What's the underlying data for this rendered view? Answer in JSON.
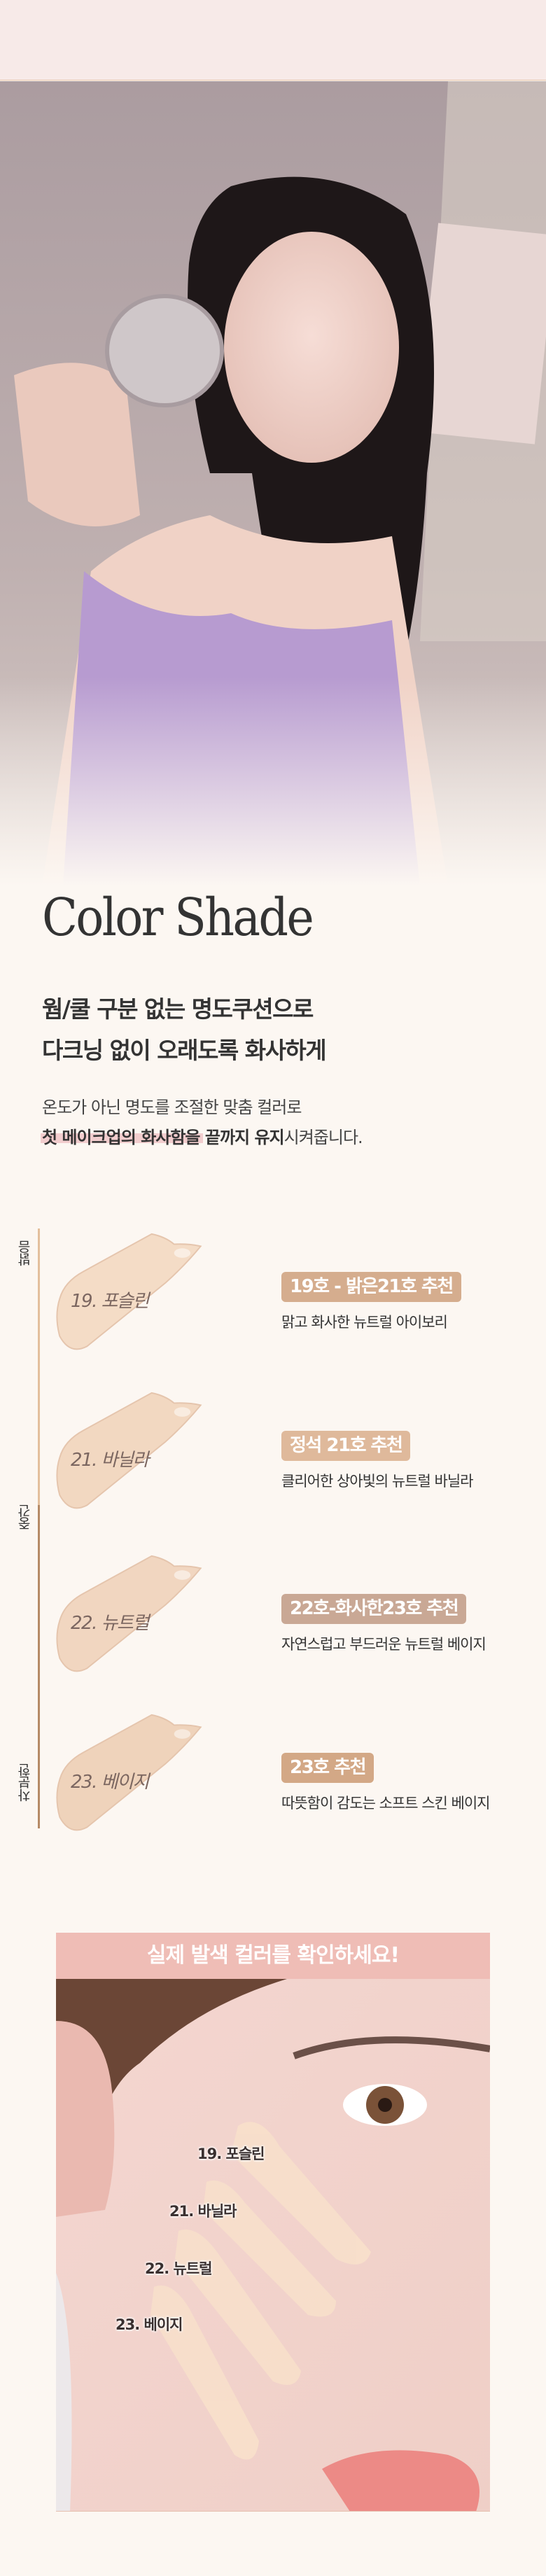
{
  "colors": {
    "background": "#fcf7f2",
    "top_band": "#f7eae8",
    "accent_pink": "#efbdb6",
    "highlight": "#efc2c4",
    "axis_light": "#e3bf9c",
    "axis_dark": "#b58a66"
  },
  "section": {
    "title": "Color Shade",
    "headline": [
      "웜/쿨 구분 없는 명도쿠션으로",
      "다크닝 없이 오래도록 화사하게"
    ],
    "body_line1": "온도가 아닌 명도를 조절한 맞춤 컬러로",
    "body_line2_strong": "첫 메이크업의 화사함을 끝까지 유지",
    "body_line2_rest": "시켜줍니다."
  },
  "scale": {
    "labels": [
      "밝음",
      "중간",
      "차분한"
    ]
  },
  "shades": [
    {
      "name": "19. 포슬린",
      "badge": "19호 - 밝은21호 추천",
      "desc": "맑고 화사한 뉴트럴 아이보리",
      "badge_color": "#d5ad8e",
      "swatch_color": "#f4dcc6"
    },
    {
      "name": "21. 바닐라",
      "badge": "정석 21호 추천",
      "desc": "클리어한 상아빛의 뉴트럴 바닐라",
      "badge_color": "#dfb99b",
      "swatch_color": "#f2d8c1"
    },
    {
      "name": "22. 뉴트럴",
      "badge": "22호-화사한23호 추천",
      "desc": "자연스럽고 부드러운 뉴트럴 베이지",
      "badge_color": "#c9a895",
      "swatch_color": "#f1d6c0"
    },
    {
      "name": "23. 베이지",
      "badge": "23호 추천",
      "desc": "따뜻함이 감도는 소프트 스킨 베이지",
      "badge_color": "#d3a886",
      "swatch_color": "#efd3bb"
    }
  ],
  "real_color": {
    "header": "실제 발색 컬러를 확인하세요!",
    "labels": [
      "19. 포슬린",
      "21. 바닐라",
      "22. 뉴트럴",
      "23. 베이지"
    ]
  }
}
